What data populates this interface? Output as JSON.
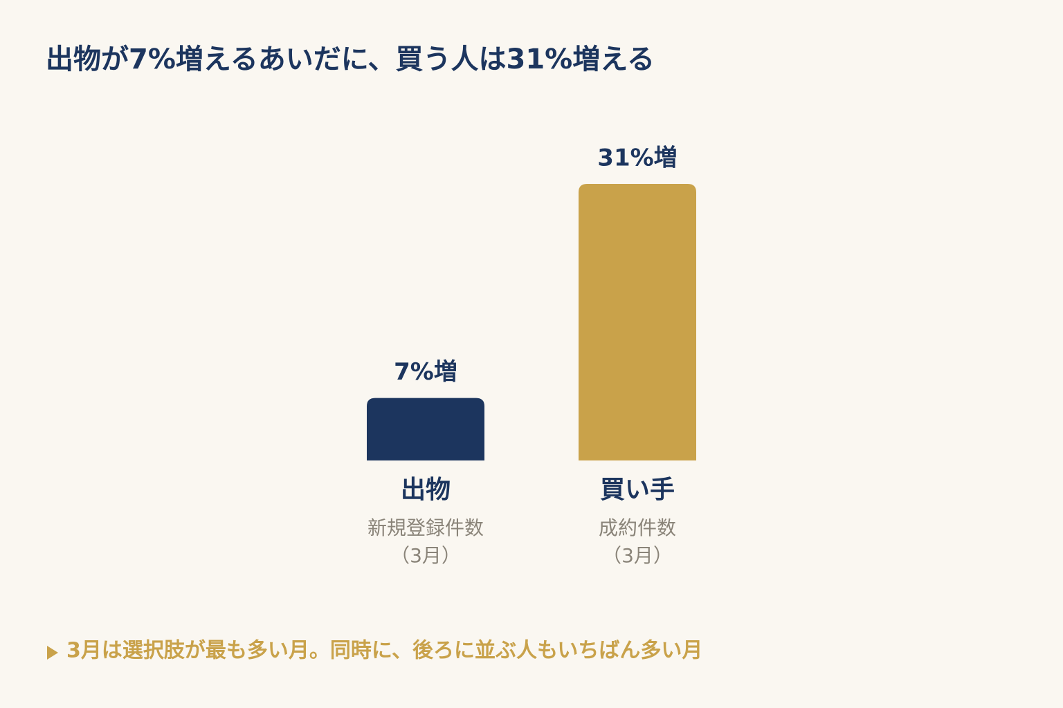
{
  "chart_data": {
    "type": "bar",
    "title": "出物が7%増えるあいだに、買う人は31%増える",
    "categories": [
      "出物",
      "買い手"
    ],
    "category_notes": [
      [
        "新規登録件数",
        "（3月）"
      ],
      [
        "成約件数",
        "（3月）"
      ]
    ],
    "values": [
      7,
      31
    ],
    "value_labels": [
      "7%増",
      "31%増"
    ],
    "colors": [
      "#1c355e",
      "#c9a24a"
    ],
    "note": "3月は選択肢が最も多い月。同時に、後ろに並ぶ人もいちばん多い月"
  }
}
